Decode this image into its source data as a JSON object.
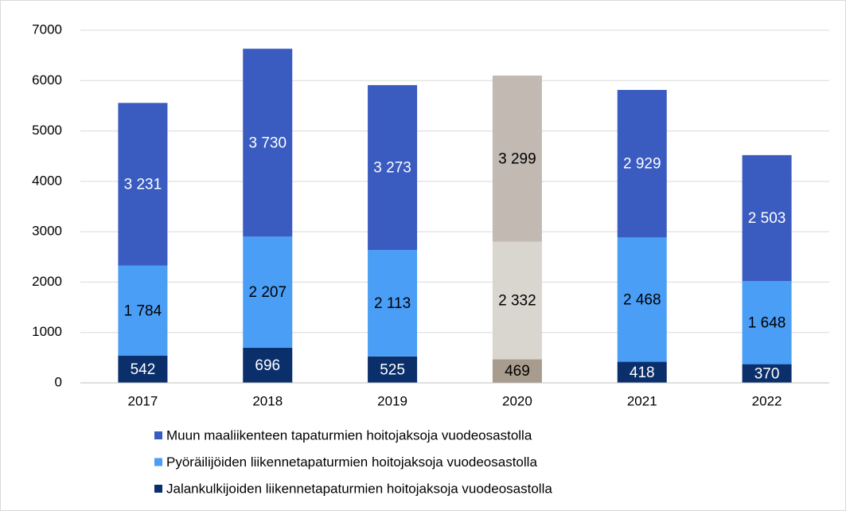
{
  "chart_data": {
    "type": "stacked_bar",
    "categories": [
      "2017",
      "2018",
      "2019",
      "2020",
      "2021",
      "2022"
    ],
    "series": [
      {
        "name": "Jalankulkijoiden liikennetapaturmien hoitojaksoja vuodeosastolla",
        "color": "#0b2f6b",
        "colors": [
          "#0b2f6b",
          "#0b2f6b",
          "#0b2f6b",
          "#a89c8e",
          "#0b2f6b",
          "#0b2f6b"
        ],
        "label_colors": [
          "#ffffff",
          "#ffffff",
          "#ffffff",
          "#000000",
          "#ffffff",
          "#ffffff"
        ],
        "values": [
          542,
          696,
          525,
          469,
          418,
          370
        ],
        "value_labels": [
          "542",
          "696",
          "525",
          "469",
          "418",
          "370"
        ]
      },
      {
        "name": "Pyöräilijöiden liikennetapaturmien hoitojaksoja vuodeosastolla",
        "color": "#4a9ef5",
        "colors": [
          "#4a9ef5",
          "#4a9ef5",
          "#4a9ef5",
          "#d9d5cf",
          "#4a9ef5",
          "#4a9ef5"
        ],
        "label_colors": [
          "#000000",
          "#000000",
          "#000000",
          "#000000",
          "#000000",
          "#000000"
        ],
        "values": [
          1784,
          2207,
          2113,
          2332,
          2468,
          1648
        ],
        "value_labels": [
          "1 784",
          "2 207",
          "2 113",
          "2 332",
          "2 468",
          "1 648"
        ]
      },
      {
        "name": "Muun maaliikenteen tapaturmien hoitojaksoja vuodeosastolla",
        "color": "#3a5bc0",
        "colors": [
          "#3a5bc0",
          "#3a5bc0",
          "#3a5bc0",
          "#c2b9b2",
          "#3a5bc0",
          "#3a5bc0"
        ],
        "label_colors": [
          "#ffffff",
          "#ffffff",
          "#ffffff",
          "#000000",
          "#ffffff",
          "#ffffff"
        ],
        "values": [
          3231,
          3730,
          3273,
          3299,
          2929,
          2503
        ],
        "value_labels": [
          "3 231",
          "3 730",
          "3 273",
          "3 299",
          "2 929",
          "2 503"
        ]
      }
    ],
    "ylim": [
      0,
      7000
    ],
    "yticks": [
      0,
      1000,
      2000,
      3000,
      4000,
      5000,
      6000,
      7000
    ],
    "grid": true,
    "legend": "bottom"
  }
}
